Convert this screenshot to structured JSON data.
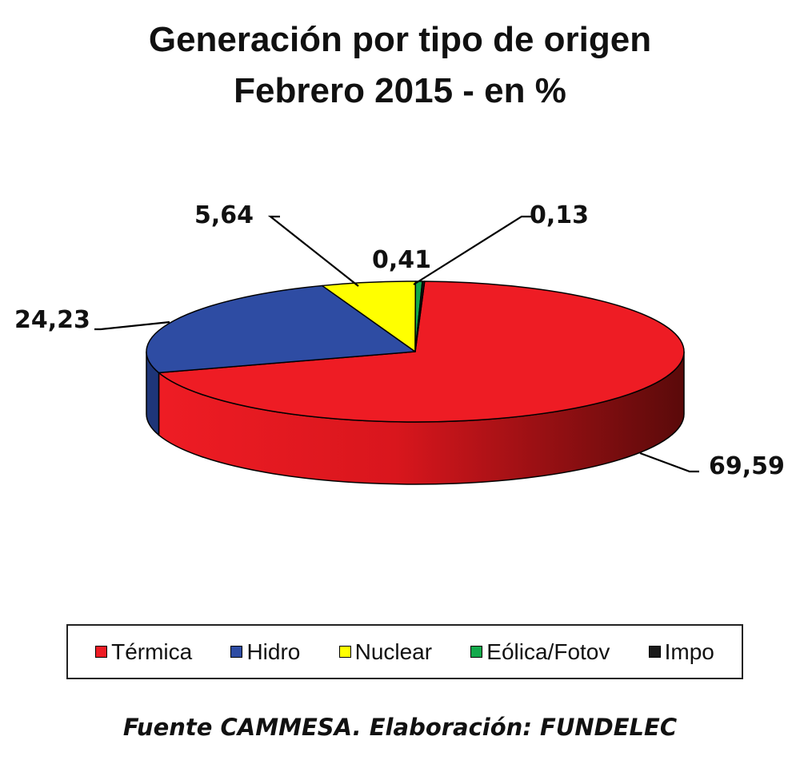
{
  "chart_data": {
    "type": "pie",
    "title_line1": "Generación por tipo de origen",
    "title_line2": "Febrero 2015 - en %",
    "categories": [
      "Térmica",
      "Hidro",
      "Nuclear",
      "Eólica/Fotov",
      "Impo"
    ],
    "values": [
      69.59,
      24.23,
      5.64,
      0.41,
      0.13
    ],
    "data_labels": [
      "69,59",
      "24,23",
      "5,64",
      "0,41",
      "0,13"
    ],
    "colors": [
      "#ee1c24",
      "#2e4ca3",
      "#ffff00",
      "#12a94b",
      "#1a1a1a"
    ],
    "side_colors": [
      "#b3141a",
      "#1e3578",
      "#b8b800",
      "#0b7434",
      "#000000"
    ],
    "style": "3d-pie",
    "legend_position": "bottom"
  },
  "source": "Fuente CAMMESA. Elaboración: FUNDELEC"
}
